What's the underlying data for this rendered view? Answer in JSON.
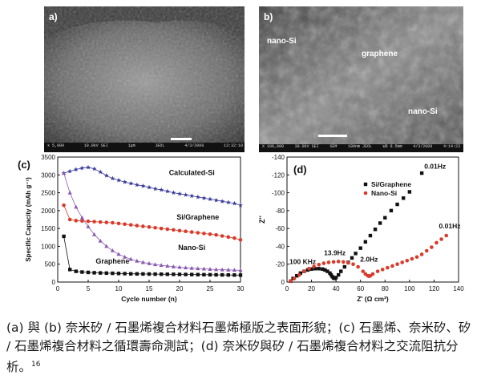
{
  "figure": {
    "panels": {
      "a": {
        "label": "a)",
        "scalebar": "1μm",
        "footer": [
          "x 5,000",
          "10.0kV SEI",
          "JEOL",
          "4/3/2009",
          "13:32:10"
        ]
      },
      "b": {
        "label": "b)",
        "annotations": [
          "nano-Si",
          "graphene",
          "nano-Si"
        ],
        "footer": [
          "X 100,000",
          "30.0kV SEI",
          "SEM",
          "100nm JEOL",
          "WD 8.5mm",
          "4/3/2009",
          "4:14:23"
        ]
      }
    }
  },
  "chart_data": [
    {
      "panel": "(c)",
      "type": "scatter",
      "xlabel": "Cycle number (n)",
      "ylabel": "Specific Capacity (mAh g⁻¹)",
      "xlim": [
        0,
        30
      ],
      "ylim": [
        0,
        3500
      ],
      "x_ticks": [
        0,
        5,
        10,
        15,
        20,
        25,
        30
      ],
      "y_ticks": [
        0,
        500,
        1000,
        1500,
        2000,
        2500,
        3000,
        3500
      ],
      "series": [
        {
          "name": "Calculated-Si",
          "color": "#3a3a9a",
          "marker": "star",
          "x": [
            1,
            2,
            3,
            4,
            5,
            6,
            7,
            8,
            9,
            10,
            11,
            12,
            13,
            14,
            15,
            16,
            17,
            18,
            19,
            20,
            21,
            22,
            23,
            24,
            25,
            26,
            27,
            28,
            29,
            30
          ],
          "y": [
            3050,
            3100,
            3150,
            3190,
            3210,
            3170,
            3080,
            2980,
            2900,
            2850,
            2800,
            2760,
            2720,
            2690,
            2650,
            2610,
            2580,
            2540,
            2500,
            2470,
            2440,
            2410,
            2380,
            2350,
            2320,
            2290,
            2260,
            2230,
            2200,
            2150
          ]
        },
        {
          "name": "Si/Graphene",
          "color": "#d93a2a",
          "marker": "circle",
          "x": [
            1,
            2,
            3,
            4,
            5,
            6,
            7,
            8,
            9,
            10,
            11,
            12,
            13,
            14,
            15,
            16,
            17,
            18,
            19,
            20,
            21,
            22,
            23,
            24,
            25,
            26,
            27,
            28,
            29,
            30
          ],
          "y": [
            2150,
            1750,
            1720,
            1710,
            1700,
            1690,
            1680,
            1670,
            1660,
            1640,
            1620,
            1600,
            1580,
            1560,
            1540,
            1520,
            1500,
            1480,
            1460,
            1440,
            1420,
            1400,
            1380,
            1360,
            1340,
            1320,
            1290,
            1260,
            1230,
            1180
          ]
        },
        {
          "name": "Nano-Si",
          "color": "#8a5ab0",
          "marker": "triangle",
          "x": [
            1,
            2,
            3,
            4,
            5,
            6,
            7,
            8,
            9,
            10,
            11,
            12,
            13,
            14,
            15,
            16,
            17,
            18,
            19,
            20,
            21,
            22,
            23,
            24,
            25,
            26,
            27,
            28,
            29,
            30
          ],
          "y": [
            3050,
            2500,
            2100,
            1800,
            1550,
            1330,
            1150,
            1000,
            880,
            780,
            700,
            640,
            590,
            550,
            520,
            490,
            470,
            450,
            430,
            415,
            400,
            390,
            380,
            370,
            360,
            350,
            345,
            340,
            335,
            330
          ]
        },
        {
          "name": "Graphene",
          "color": "#111111",
          "marker": "square",
          "x": [
            1,
            2,
            3,
            4,
            5,
            6,
            7,
            8,
            9,
            10,
            11,
            12,
            13,
            14,
            15,
            16,
            17,
            18,
            19,
            20,
            21,
            22,
            23,
            24,
            25,
            26,
            27,
            28,
            29,
            30
          ],
          "y": [
            1280,
            350,
            300,
            280,
            270,
            260,
            255,
            250,
            245,
            240,
            235,
            230,
            228,
            226,
            224,
            222,
            220,
            218,
            216,
            214,
            212,
            210,
            208,
            206,
            204,
            202,
            200,
            198,
            196,
            194
          ]
        }
      ]
    },
    {
      "panel": "(d)",
      "type": "scatter",
      "xlabel": "Z' (Ω cm²)",
      "ylabel": "Z''",
      "xlim": [
        0,
        140
      ],
      "ylim": [
        0,
        -140
      ],
      "x_ticks": [
        0,
        20,
        40,
        60,
        80,
        100,
        120,
        140
      ],
      "y_ticks": [
        0,
        -20,
        -40,
        -60,
        -80,
        -100,
        -120,
        -140
      ],
      "annotations": [
        "0.01Hz",
        "0.01Hz",
        "13.9Hz",
        "2.0Hz",
        "100 KHz"
      ],
      "series": [
        {
          "name": "Si/Graphene",
          "color": "#111111",
          "marker": "square",
          "x": [
            3,
            5,
            8,
            11,
            14,
            17,
            20,
            23,
            26,
            29,
            31,
            33,
            35,
            36,
            37,
            38,
            39,
            40,
            42,
            44,
            47,
            50,
            53,
            56,
            60,
            64,
            68,
            72,
            76,
            80,
            85,
            90,
            95,
            100,
            110
          ],
          "y": [
            -1,
            -4,
            -7,
            -10,
            -12,
            -13.5,
            -14.5,
            -15,
            -15,
            -14.5,
            -13.5,
            -12,
            -10,
            -8,
            -6,
            -4.5,
            -4,
            -5,
            -8,
            -12,
            -17,
            -22,
            -27,
            -32,
            -38,
            -45,
            -52,
            -59,
            -66,
            -72,
            -80,
            -87,
            -94,
            -101,
            -122
          ]
        },
        {
          "name": "Nano-Si",
          "color": "#d93a2a",
          "marker": "circle",
          "x": [
            3,
            6,
            10,
            14,
            18,
            22,
            26,
            30,
            34,
            38,
            42,
            46,
            50,
            54,
            58,
            62,
            64,
            66,
            67,
            68,
            70,
            74,
            78,
            82,
            86,
            90,
            94,
            98,
            102,
            106,
            110,
            114,
            118,
            122,
            126,
            130
          ],
          "y": [
            -1,
            -4,
            -8,
            -12,
            -15,
            -17.5,
            -19.5,
            -21,
            -22,
            -22.5,
            -23,
            -22.5,
            -21.5,
            -20,
            -17,
            -12,
            -9,
            -7,
            -6.5,
            -7,
            -9,
            -12,
            -14,
            -16,
            -18,
            -20,
            -22,
            -24,
            -26,
            -28,
            -31,
            -35,
            -39,
            -44,
            -48,
            -52
          ]
        }
      ]
    }
  ],
  "caption": "(a) 與 (b) 奈米矽 / 石墨烯複合材料石墨烯極版之表面形貌；(c) 石墨烯、奈米矽、矽 / 石墨烯複合材料之循環壽命測試；(d) 奈米矽與矽 / 石墨烯複合材料之交流阻抗分析。",
  "caption_ref": "16"
}
